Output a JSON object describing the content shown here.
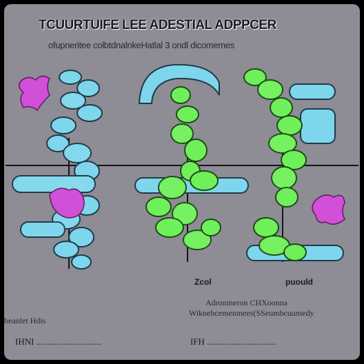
{
  "title": "TCUURTUIFE LEE ADESTIAL ADPPCER",
  "subtitle": "ofupneritee colbtdnalnkeHatlal 3 ondl dicomemes",
  "labels": {
    "center": "Zcol",
    "right": "puould"
  },
  "caption": {
    "line1": "Adronmeron CHXoonna",
    "line2": "Wiknebcemenmees(SSeumbcuumedy"
  },
  "left_note": "beanlet Hdis",
  "footer": {
    "left": "IHNI .............................",
    "right": "IFH ..............................."
  },
  "colors": {
    "panel": "#8e8c95",
    "cyan_chain": "#7ed6ec",
    "green_chain": "#6ff05a",
    "magenta_blob": "#d24fd8",
    "axis_line": "#141418"
  }
}
